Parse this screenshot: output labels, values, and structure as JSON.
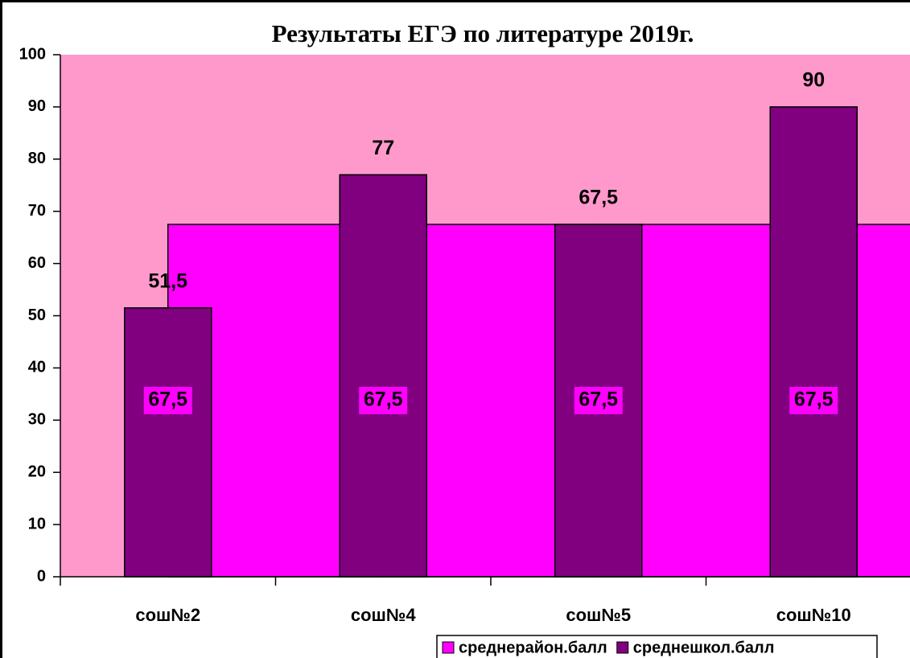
{
  "chart_data": {
    "type": "bar",
    "title": "Результаты ЕГЭ по литературе 2019г.",
    "categories": [
      "сош№2",
      "сош№4",
      "сош№5",
      "сош№10"
    ],
    "series": [
      {
        "name": "среднерайон.балл",
        "color": "#ff00ff",
        "values": [
          67.5,
          67.5,
          67.5,
          67.5
        ],
        "value_labels": [
          "67,5",
          "67,5",
          "67,5",
          "67,5"
        ]
      },
      {
        "name": "среднешкол.балл",
        "color": "#800080",
        "values": [
          51.5,
          77,
          67.5,
          90
        ],
        "value_labels": [
          "51,5",
          "77",
          "67,5",
          "90"
        ]
      }
    ],
    "ylim": [
      0,
      100
    ],
    "yticks": [
      0,
      10,
      20,
      30,
      40,
      50,
      60,
      70,
      80,
      90,
      100
    ],
    "plot_background": "#ff99cc",
    "legend": "bottom-right"
  }
}
